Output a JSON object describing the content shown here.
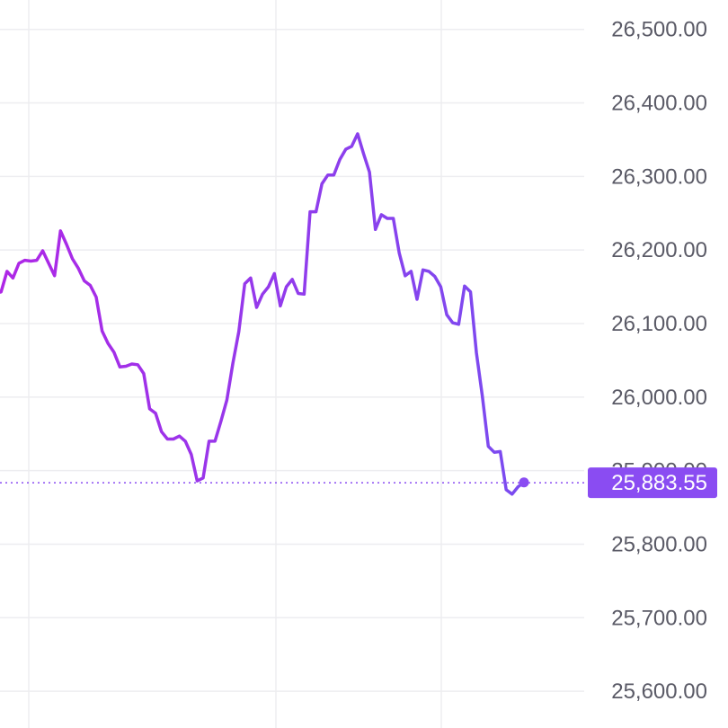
{
  "chart_data": {
    "type": "line",
    "ylim": [
      25550,
      26540
    ],
    "y_ticks": [
      "25,600.00",
      "25,700.00",
      "25,800.00",
      "25,900.00",
      "26,000.00",
      "26,100.00",
      "26,200.00",
      "26,300.00",
      "26,400.00",
      "26,500.00"
    ],
    "y_tick_values": [
      25600,
      25700,
      25800,
      25900,
      26000,
      26100,
      26200,
      26300,
      26400,
      26500
    ],
    "last_price": 25883.55,
    "last_price_label": "25,883.55",
    "grid": true,
    "colors": {
      "line_start": "#b026e6",
      "line_end": "#7a4cf0",
      "price_tag": "#8a4cf2",
      "grid": "#ededf0",
      "text": "#5a5a66"
    },
    "series": [
      {
        "values": [
          26136,
          26141,
          26143,
          26171,
          26162,
          26182,
          26186,
          26185,
          26186,
          26199,
          26182,
          26165,
          26226,
          26208,
          26188,
          26175,
          26158,
          26152,
          26136,
          26090,
          26073,
          26061,
          26041,
          26042,
          26045,
          26044,
          26032,
          25984,
          25978,
          25953,
          25943,
          25943,
          25947,
          25940,
          25922,
          25886,
          25890,
          25940,
          25940,
          25967,
          25996,
          26046,
          26089,
          26154,
          26162,
          26122,
          26140,
          26150,
          26168,
          26124,
          26150,
          26160,
          26141,
          26140,
          26252,
          26252,
          26290,
          26302,
          26302,
          26323,
          26337,
          26341,
          26358,
          26331,
          26306,
          26228,
          26248,
          26243,
          26243,
          26196,
          26165,
          26171,
          26133,
          26173,
          26171,
          26164,
          26150,
          26112,
          26101,
          26099,
          26151,
          26143,
          26060,
          26001,
          25933,
          25925,
          25926,
          25874,
          25868,
          25878,
          25884
        ]
      }
    ]
  }
}
